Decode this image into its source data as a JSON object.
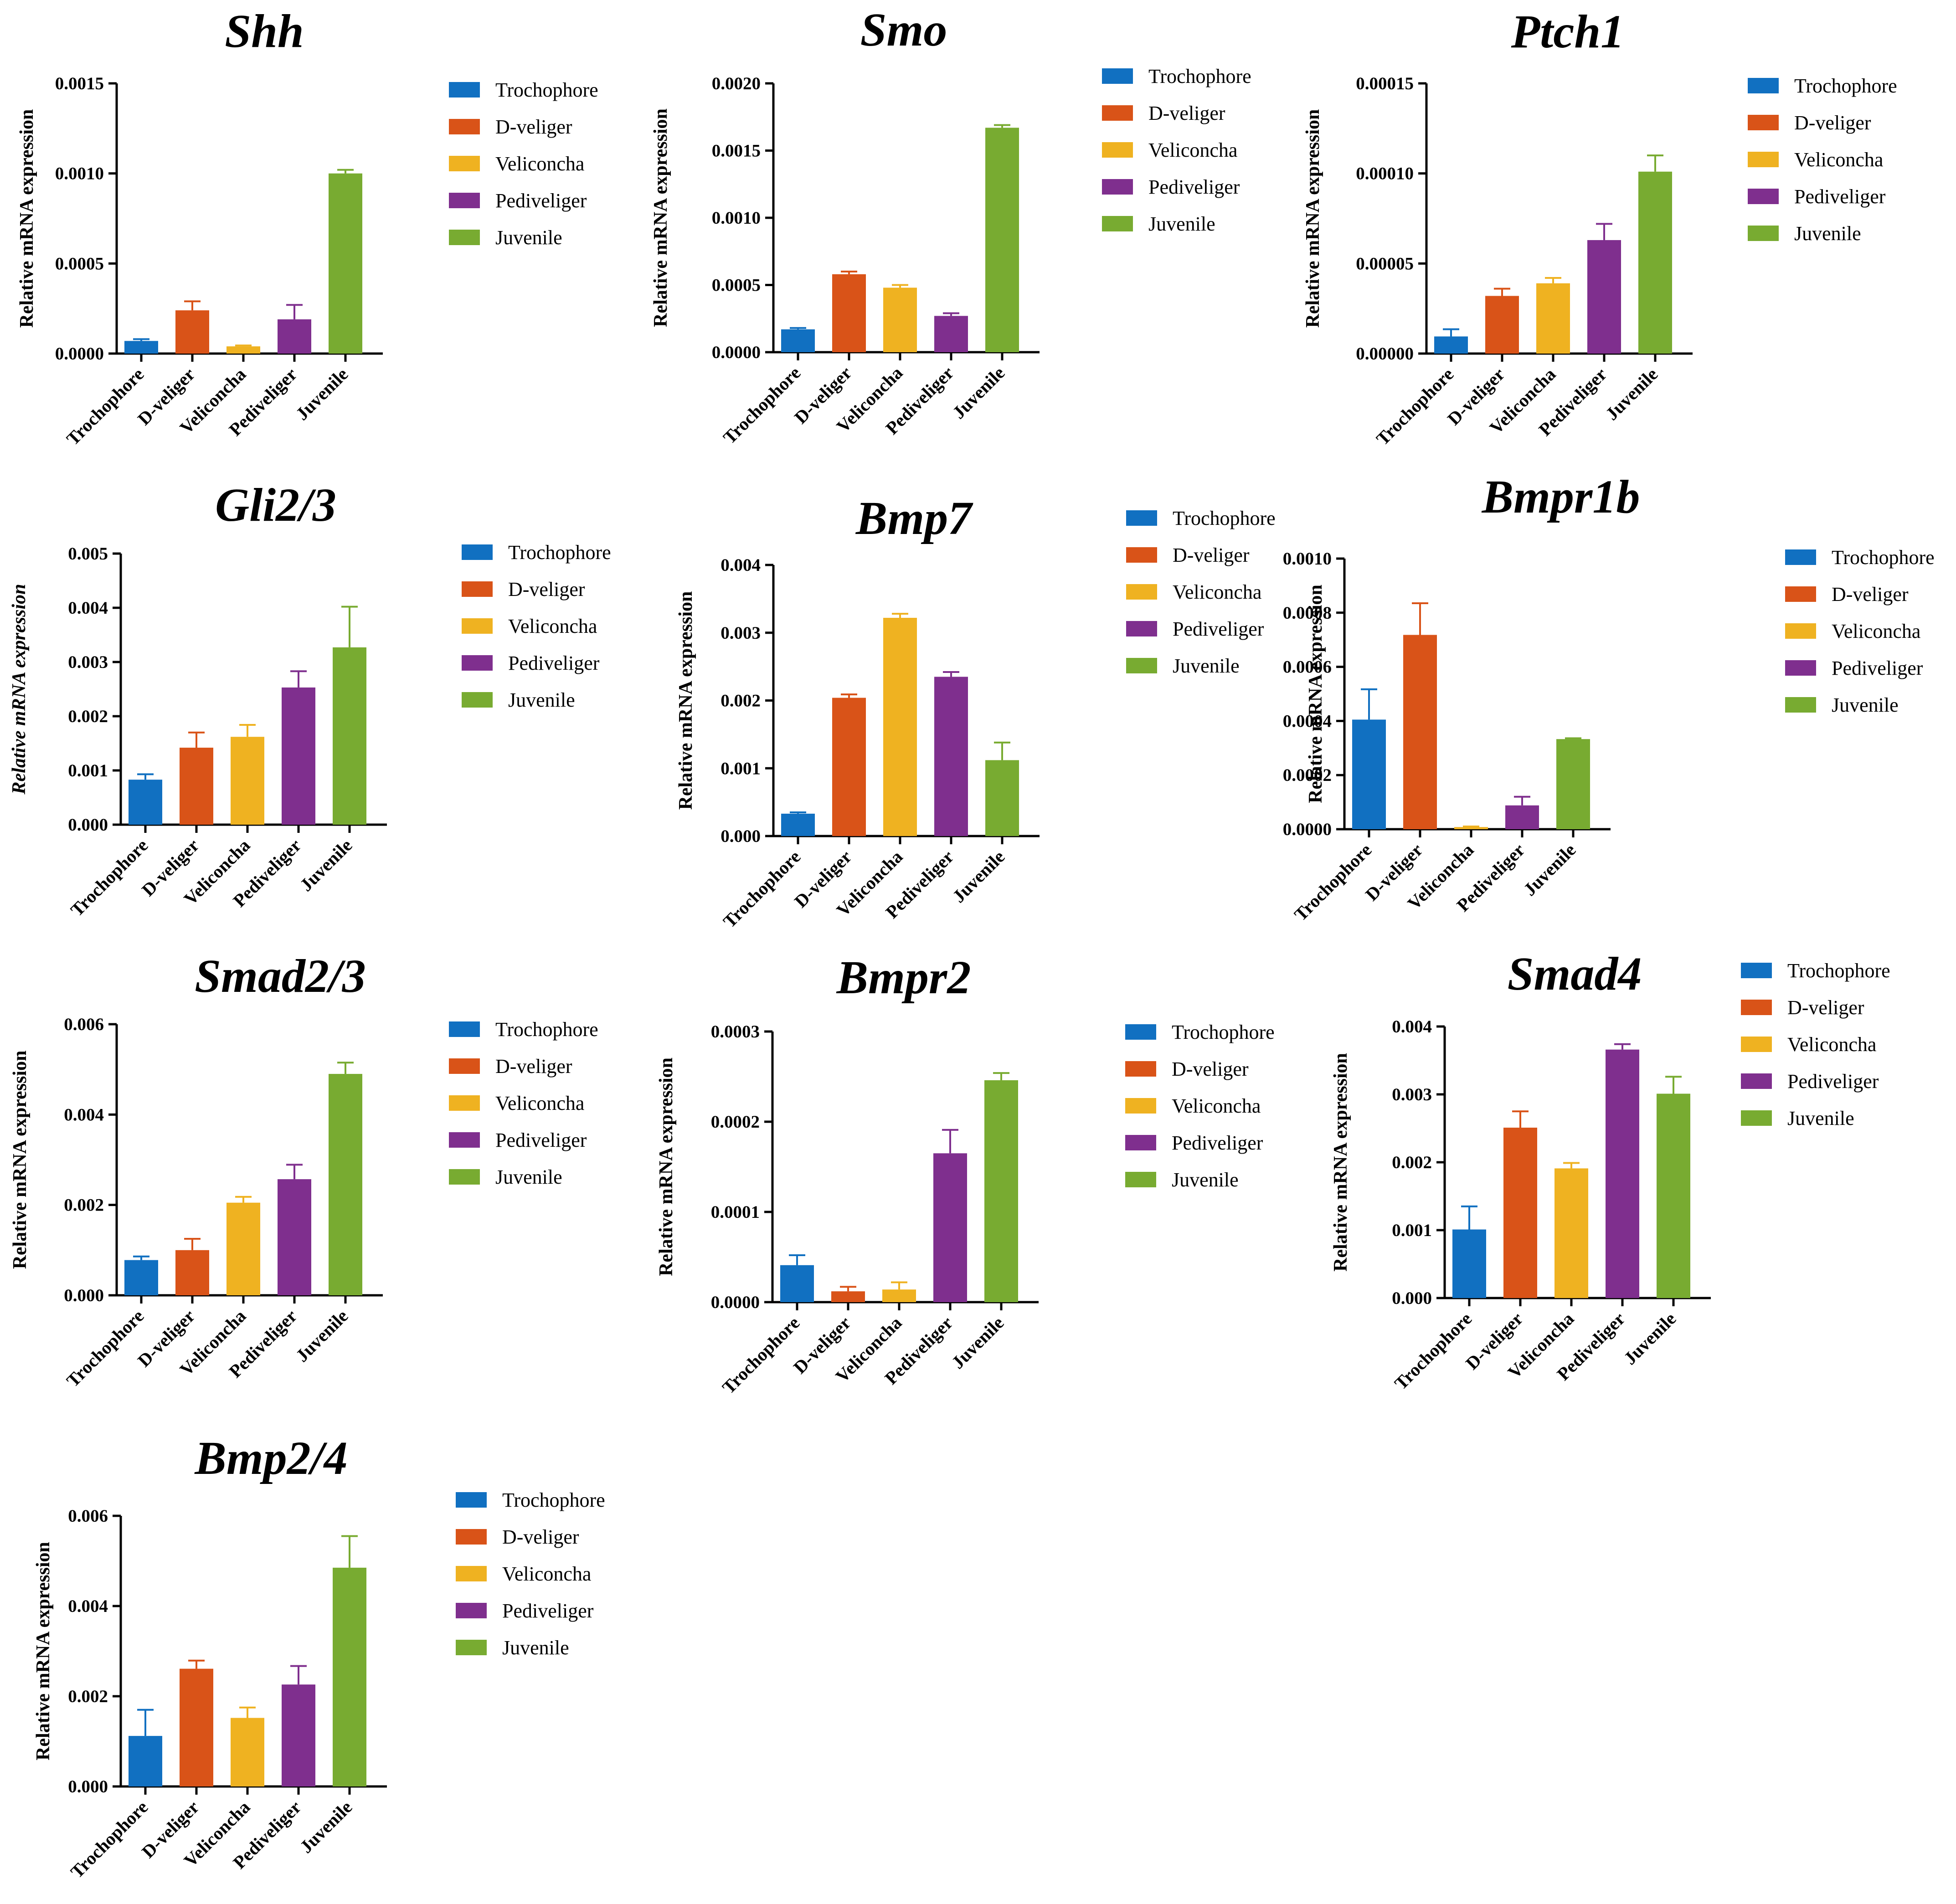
{
  "figure": {
    "legend_entries": [
      "Trochophore",
      "D-veliger",
      "Veliconcha",
      "Pediveliger",
      "Juvenile"
    ]
  },
  "colors": {
    "series": [
      "#1170c1",
      "#d95318",
      "#efb221",
      "#7f2f8e",
      "#78ab31"
    ],
    "axis": "#000000"
  },
  "chart_data": [
    {
      "type": "bar",
      "title": "Shh",
      "ylabel": "Relative mRNA expression",
      "ylabel_italic": false,
      "categories": [
        "Trochophore",
        "D-veliger",
        "Veliconcha",
        "Pediveliger",
        "Juvenile"
      ],
      "values": [
        7e-05,
        0.00024,
        4e-05,
        0.00019,
        0.001
      ],
      "errors": [
        1e-05,
        5e-05,
        5e-06,
        8e-05,
        2e-05
      ],
      "ylim": [
        0,
        0.0015
      ],
      "yticks": [
        "0.0000",
        "0.0005",
        "0.0010",
        "0.0015"
      ],
      "legend": [
        "Trochophore",
        "D-veliger",
        "Veliconcha",
        "Pediveliger",
        "Juvenile"
      ]
    },
    {
      "type": "bar",
      "title": "Smo",
      "ylabel": "Relative mRNA expression",
      "ylabel_italic": false,
      "categories": [
        "Trochophore",
        "D-veliger",
        "Veliconcha",
        "Pediveliger",
        "Juvenile"
      ],
      "values": [
        0.00017,
        0.00058,
        0.00048,
        0.00027,
        0.00167
      ],
      "errors": [
        1e-05,
        2e-05,
        2e-05,
        2e-05,
        2e-05
      ],
      "ylim": [
        0,
        0.002
      ],
      "yticks": [
        "0.0000",
        "0.0005",
        "0.0010",
        "0.0015",
        "0.0020"
      ],
      "legend": [
        "Trochophore",
        "D-veliger",
        "Veliconcha",
        "Pediveliger",
        "Juvenile"
      ]
    },
    {
      "type": "bar",
      "title": "Ptch1",
      "ylabel": "Relative mRNA expression",
      "ylabel_italic": false,
      "categories": [
        "Trochophore",
        "D-veliger",
        "Veliconcha",
        "Pediveliger",
        "Juvenile"
      ],
      "values": [
        9.5e-06,
        3.2e-05,
        3.9e-05,
        6.3e-05,
        0.000101
      ],
      "errors": [
        4e-06,
        4e-06,
        3e-06,
        9e-06,
        9e-06
      ],
      "ylim": [
        0,
        0.00015
      ],
      "yticks": [
        "0.00000",
        "0.00005",
        "0.00010",
        "0.00015"
      ],
      "legend": [
        "Trochophore",
        "D-veliger",
        "Veliconcha",
        "Pediveliger",
        "Juvenile"
      ]
    },
    {
      "type": "bar",
      "title": "Gli2/3",
      "ylabel": "Relative mRNA expression",
      "ylabel_italic": true,
      "categories": [
        "Trochophore",
        "D-veliger",
        "Veliconcha",
        "Pediveliger",
        "Juvenile"
      ],
      "values": [
        0.00083,
        0.00142,
        0.00162,
        0.00253,
        0.00327
      ],
      "errors": [
        0.0001,
        0.00028,
        0.00022,
        0.0003,
        0.00075
      ],
      "ylim": [
        0,
        0.005
      ],
      "yticks": [
        "0.000",
        "0.001",
        "0.002",
        "0.003",
        "0.004",
        "0.005"
      ],
      "legend": [
        "Trochophore",
        "D-veliger",
        "Veliconcha",
        "Pediveliger",
        "Juvenile"
      ]
    },
    {
      "type": "bar",
      "title": "Bmp7",
      "ylabel": "Relative mRNA expression",
      "ylabel_italic": false,
      "categories": [
        "Trochophore",
        "D-veliger",
        "Veliconcha",
        "Pediveliger",
        "Juvenile"
      ],
      "values": [
        0.00033,
        0.00204,
        0.00322,
        0.00235,
        0.00112
      ],
      "errors": [
        2e-05,
        5e-05,
        6e-05,
        7e-05,
        0.00026
      ],
      "ylim": [
        0,
        0.004
      ],
      "yticks": [
        "0.000",
        "0.001",
        "0.002",
        "0.003",
        "0.004"
      ],
      "legend": [
        "Trochophore",
        "D-veliger",
        "Veliconcha",
        "Pediveliger",
        "Juvenile"
      ]
    },
    {
      "type": "bar",
      "title": "Bmpr1b",
      "ylabel": "Relative mRNA expression",
      "ylabel_italic": false,
      "categories": [
        "Trochophore",
        "D-veliger",
        "Veliconcha",
        "Pediveliger",
        "Juvenile"
      ],
      "values": [
        0.000405,
        0.000718,
        8e-06,
        8.8e-05,
        0.000333
      ],
      "errors": [
        0.000112,
        0.000117,
        2e-06,
        3.2e-05,
        3e-06
      ],
      "ylim": [
        0,
        0.001
      ],
      "yticks": [
        "0.0000",
        "0.0002",
        "0.0004",
        "0.0006",
        "0.0008",
        "0.0010"
      ],
      "legend": [
        "Trochophore",
        "D-veliger",
        "Veliconcha",
        "Pediveliger",
        "Juvenile"
      ]
    },
    {
      "type": "bar",
      "title": "Smad2/3",
      "ylabel": "Relative mRNA expression",
      "ylabel_italic": false,
      "categories": [
        "Trochophore",
        "D-veliger",
        "Veliconcha",
        "Pediveliger",
        "Juvenile"
      ],
      "values": [
        0.00078,
        0.001,
        0.00205,
        0.00257,
        0.0049
      ],
      "errors": [
        8e-05,
        0.00025,
        0.00013,
        0.00032,
        0.00025
      ],
      "ylim": [
        0,
        0.006
      ],
      "yticks": [
        "0.000",
        "0.002",
        "0.004",
        "0.006"
      ],
      "legend": [
        "Trochophore",
        "D-veliger",
        "Veliconcha",
        "Pediveliger",
        "Juvenile"
      ]
    },
    {
      "type": "bar",
      "title": "Bmpr2",
      "ylabel": "Relative mRNA expression",
      "ylabel_italic": false,
      "categories": [
        "Trochophore",
        "D-veliger",
        "Veliconcha",
        "Pediveliger",
        "Juvenile"
      ],
      "values": [
        4.1e-05,
        1.2e-05,
        1.4e-05,
        0.000165,
        0.000246
      ],
      "errors": [
        1.1e-05,
        5e-06,
        8e-06,
        2.6e-05,
        8e-06
      ],
      "ylim": [
        0,
        0.0003
      ],
      "yticks": [
        "0.0000",
        "0.0001",
        "0.0002",
        "0.0003"
      ],
      "legend": [
        "Trochophore",
        "D-veliger",
        "Veliconcha",
        "Pediveliger",
        "Juvenile"
      ]
    },
    {
      "type": "bar",
      "title": "Smad4",
      "ylabel": "Relative mRNA expression",
      "ylabel_italic": false,
      "categories": [
        "Trochophore",
        "D-veliger",
        "Veliconcha",
        "Pediveliger",
        "Juvenile"
      ],
      "values": [
        0.00101,
        0.00251,
        0.00191,
        0.00366,
        0.00301
      ],
      "errors": [
        0.00034,
        0.00024,
        8e-05,
        8e-05,
        0.00025
      ],
      "ylim": [
        0,
        0.004
      ],
      "yticks": [
        "0.000",
        "0.001",
        "0.002",
        "0.003",
        "0.004"
      ],
      "legend": [
        "Trochophore",
        "D-veliger",
        "Veliconcha",
        "Pediveliger",
        "Juvenile"
      ]
    },
    {
      "type": "bar",
      "title": "Bmp2/4",
      "ylabel": "Relative mRNA expression",
      "ylabel_italic": false,
      "categories": [
        "Trochophore",
        "D-veliger",
        "Veliconcha",
        "Pediveliger",
        "Juvenile"
      ],
      "values": [
        0.00112,
        0.00261,
        0.00152,
        0.00226,
        0.00485
      ],
      "errors": [
        0.00058,
        0.00018,
        0.00023,
        0.00041,
        0.0007
      ],
      "ylim": [
        0,
        0.006
      ],
      "yticks": [
        "0.000",
        "0.002",
        "0.004",
        "0.006"
      ],
      "legend": [
        "Trochophore",
        "D-veliger",
        "Veliconcha",
        "Pediveliger",
        "Juvenile"
      ]
    }
  ]
}
